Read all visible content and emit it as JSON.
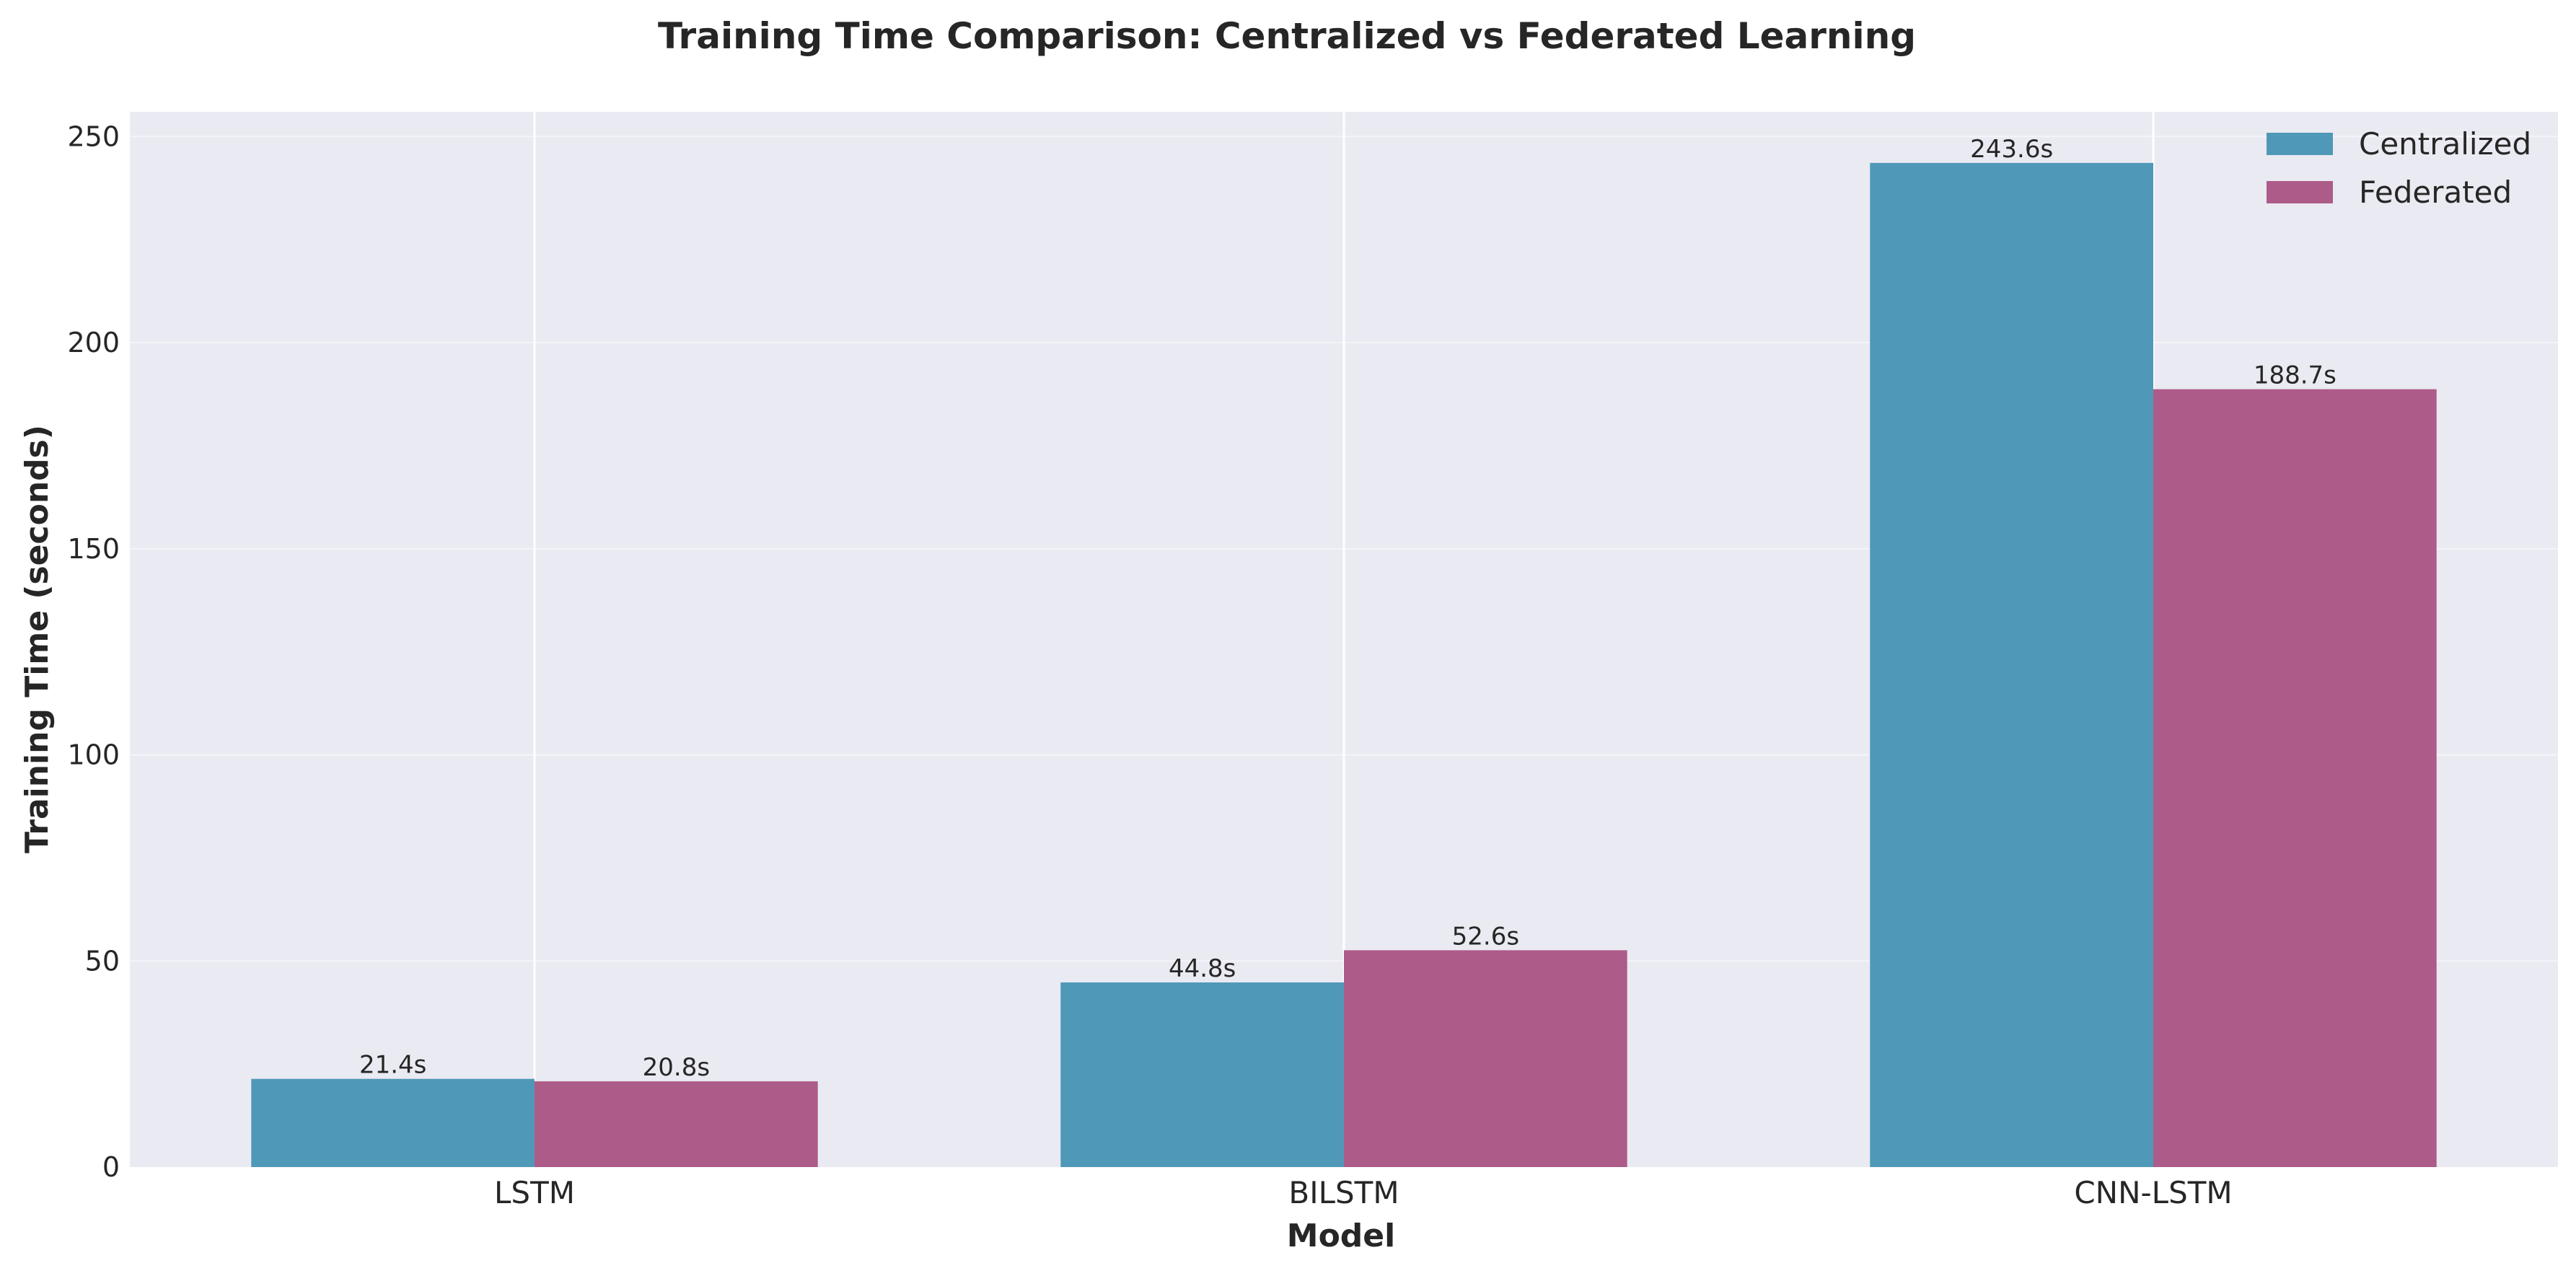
{
  "chart_data": {
    "type": "bar",
    "title": "Training Time Comparison: Centralized vs Federated Learning",
    "xlabel": "Model",
    "ylabel": "Training Time (seconds)",
    "categories": [
      "LSTM",
      "BILSTM",
      "CNN-LSTM"
    ],
    "series": [
      {
        "name": "Centralized",
        "values": [
          21.4,
          44.8,
          243.6
        ],
        "labels": [
          "21.4s",
          "44.8s",
          "243.6s"
        ],
        "color": "#4f98b8"
      },
      {
        "name": "Federated",
        "values": [
          20.8,
          52.6,
          188.7
        ],
        "labels": [
          "20.8s",
          "52.6s",
          "188.7s"
        ],
        "color": "#ad5b88"
      }
    ],
    "ylim": [
      0,
      256
    ],
    "yticks": [
      0,
      50,
      100,
      150,
      200,
      250
    ],
    "grid": true,
    "legend_position": "top-right",
    "background_color": "#eaeaf2"
  }
}
